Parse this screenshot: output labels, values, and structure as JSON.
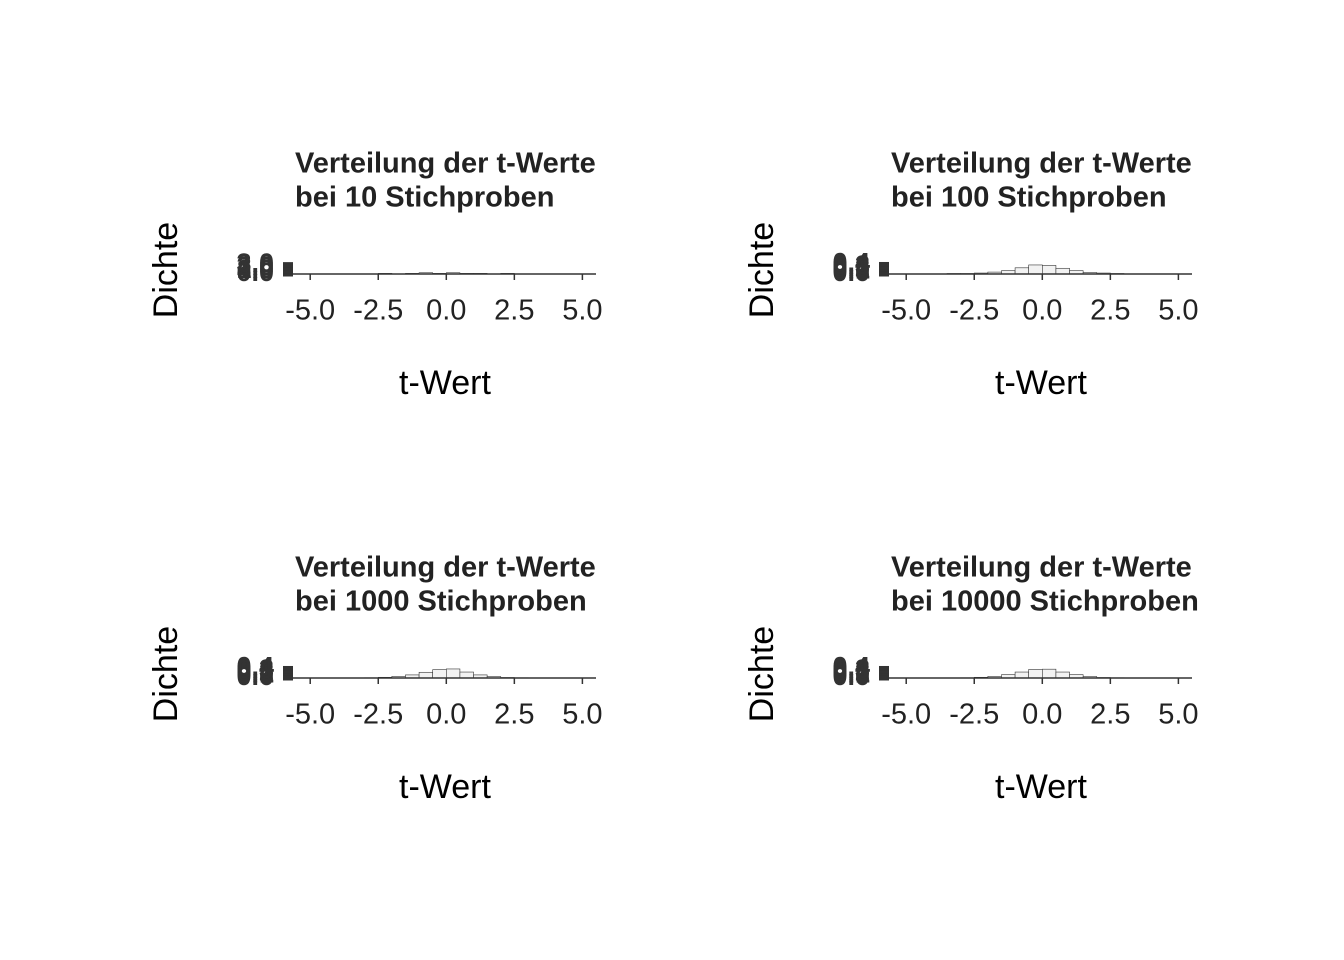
{
  "chart_data": [
    {
      "type": "histogram",
      "title": [
        "Verteilung der t-Werte",
        "bei 10 Stichproben"
      ],
      "xlabel": "t-Wert",
      "ylabel": "Dichte",
      "bins": [
        -2.5,
        -2.0,
        -1.5,
        -1.0,
        -0.5,
        0.0,
        0.5,
        1.0,
        1.5,
        2.0,
        2.5
      ],
      "values": [
        0.2,
        0.0,
        0.2,
        0.4,
        0.2,
        0.4,
        0.2,
        0.2,
        0.0,
        0.2
      ],
      "color": "#f2f2f2",
      "edgecolor": "#333333",
      "xlim": [
        -6,
        5.5
      ],
      "xticks": [
        {
          "value": -5,
          "label": "-5.0"
        },
        {
          "value": -2.5,
          "label": "-2.5"
        },
        {
          "value": 0,
          "label": "0.0"
        },
        {
          "value": 2.5,
          "label": "2.5"
        },
        {
          "value": 5,
          "label": "5.0"
        }
      ],
      "ylim": [
        0,
        3.2
      ],
      "yticks": [
        {
          "value": 0,
          "label": "0.0"
        },
        {
          "value": 1,
          "label": "1.0"
        },
        {
          "value": 2,
          "label": "2.0"
        },
        {
          "value": 3,
          "label": "3.0"
        }
      ]
    },
    {
      "type": "histogram",
      "title": [
        "Verteilung der t-Werte",
        "bei 100 Stichproben"
      ],
      "xlabel": "t-Wert",
      "ylabel": "Dichte",
      "bins": [
        -3.5,
        -3.0,
        -2.5,
        -2.0,
        -1.5,
        -1.0,
        -0.5,
        0.0,
        0.5,
        1.0,
        1.5,
        2.0,
        2.5,
        3.0,
        3.5
      ],
      "values": [
        0.02,
        0.02,
        0.04,
        0.08,
        0.14,
        0.26,
        0.38,
        0.36,
        0.24,
        0.14,
        0.06,
        0.04,
        0.02,
        0.0
      ],
      "color": "#f2f2f2",
      "edgecolor": "#333333",
      "xlim": [
        -6,
        5.5
      ],
      "xticks": [
        {
          "value": -5,
          "label": "-5.0"
        },
        {
          "value": -2.5,
          "label": "-2.5"
        },
        {
          "value": 0,
          "label": "0.0"
        },
        {
          "value": 2.5,
          "label": "2.5"
        },
        {
          "value": 5,
          "label": "5.0"
        }
      ],
      "ylim": [
        0,
        0.42
      ],
      "yticks": [
        {
          "value": 0,
          "label": "0.0"
        },
        {
          "value": 0.1,
          "label": "0.1"
        },
        {
          "value": 0.2,
          "label": "0.2"
        },
        {
          "value": 0.3,
          "label": "0.3"
        },
        {
          "value": 0.4,
          "label": "0.4"
        }
      ]
    },
    {
      "type": "histogram",
      "title": [
        "Verteilung der t-Werte",
        "bei 1000 Stichproben"
      ],
      "xlabel": "t-Wert",
      "ylabel": "Dichte",
      "bins": [
        -3.5,
        -3.0,
        -2.5,
        -2.0,
        -1.5,
        -1.0,
        -0.5,
        0.0,
        0.5,
        1.0,
        1.5,
        2.0,
        2.5,
        3.0,
        3.5
      ],
      "values": [
        0.004,
        0.01,
        0.03,
        0.07,
        0.13,
        0.24,
        0.35,
        0.38,
        0.25,
        0.13,
        0.06,
        0.02,
        0.01,
        0.002
      ],
      "color": "#f2f2f2",
      "edgecolor": "#333333",
      "xlim": [
        -6,
        5.5
      ],
      "xticks": [
        {
          "value": -5,
          "label": "-5.0"
        },
        {
          "value": -2.5,
          "label": "-2.5"
        },
        {
          "value": 0,
          "label": "0.0"
        },
        {
          "value": 2.5,
          "label": "2.5"
        },
        {
          "value": 5,
          "label": "5.0"
        }
      ],
      "ylim": [
        0,
        0.42
      ],
      "yticks": [
        {
          "value": 0,
          "label": "0.0"
        },
        {
          "value": 0.1,
          "label": "0.1"
        },
        {
          "value": 0.2,
          "label": "0.2"
        },
        {
          "value": 0.3,
          "label": "0.3"
        },
        {
          "value": 0.4,
          "label": "0.4"
        }
      ]
    },
    {
      "type": "histogram",
      "title": [
        "Verteilung der t-Werte",
        "bei 10000 Stichproben"
      ],
      "xlabel": "t-Wert",
      "ylabel": "Dichte",
      "bins": [
        -3.5,
        -3.0,
        -2.5,
        -2.0,
        -1.5,
        -1.0,
        -0.5,
        0.0,
        0.5,
        1.0,
        1.5,
        2.0,
        2.5,
        3.0,
        3.5
      ],
      "values": [
        0.004,
        0.01,
        0.03,
        0.07,
        0.14,
        0.25,
        0.36,
        0.37,
        0.25,
        0.14,
        0.06,
        0.02,
        0.01,
        0.003
      ],
      "color": "#f2f2f2",
      "edgecolor": "#333333",
      "xlim": [
        -6,
        5.5
      ],
      "xticks": [
        {
          "value": -5,
          "label": "-5.0"
        },
        {
          "value": -2.5,
          "label": "-2.5"
        },
        {
          "value": 0,
          "label": "0.0"
        },
        {
          "value": 2.5,
          "label": "2.5"
        },
        {
          "value": 5,
          "label": "5.0"
        }
      ],
      "ylim": [
        0,
        0.42
      ],
      "yticks": [
        {
          "value": 0,
          "label": "0.0"
        },
        {
          "value": 0.1,
          "label": "0.1"
        },
        {
          "value": 0.2,
          "label": "0.2"
        },
        {
          "value": 0.3,
          "label": "0.3"
        },
        {
          "value": 0.4,
          "label": "0.4"
        }
      ]
    }
  ]
}
